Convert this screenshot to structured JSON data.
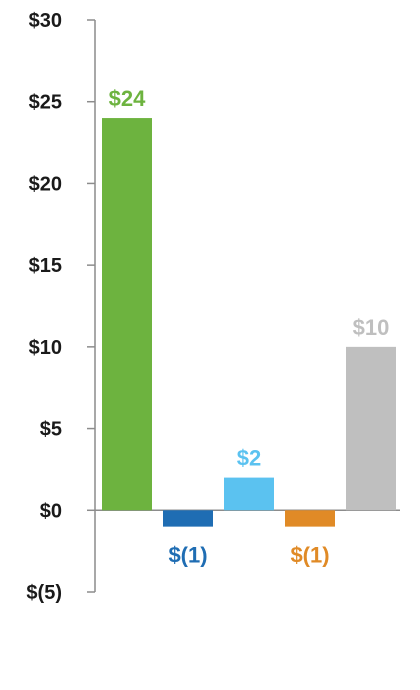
{
  "chart_data": {
    "type": "bar",
    "categories": [
      "",
      "",
      "",
      "",
      ""
    ],
    "values": [
      24,
      -1,
      2,
      -1,
      10
    ],
    "value_labels": [
      "$24",
      "$(1)",
      "$2",
      "$(1)",
      "$10"
    ],
    "colors": [
      "#6db33f",
      "#1f6db3",
      "#5bc2f0",
      "#e08a26",
      "#bfbfbf"
    ],
    "ylim": [
      -5,
      30
    ],
    "yticks": [
      30,
      25,
      20,
      15,
      10,
      5,
      0,
      -5
    ],
    "ytick_labels": [
      "$30",
      "$25",
      "$20",
      "$15",
      "$10",
      "$5",
      "$0",
      "$(5)"
    ],
    "grid": false,
    "legend": "none",
    "title": "",
    "xlabel": "",
    "ylabel": ""
  }
}
